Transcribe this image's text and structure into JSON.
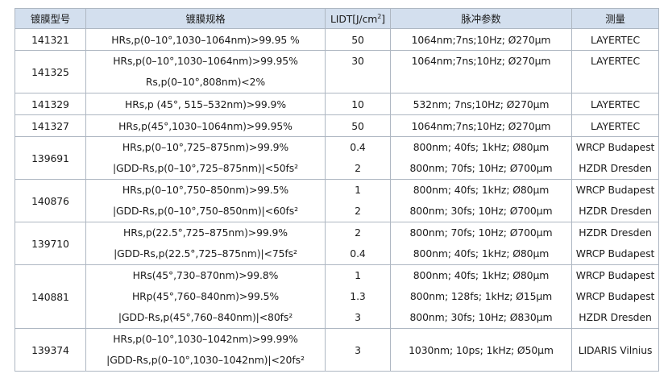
{
  "headers": [
    "镀膜型号",
    "镀膜规格",
    "LIDT[J/cm",
    "2",
    "]",
    "脉冲参数",
    "测量"
  ],
  "rows": [
    {
      "id": "141321",
      "lines": [
        {
          "spec": "HRs,p(0–10°,1030–1064nm)>99.95 %",
          "lidt": "50",
          "pulse": "1064nm;7ns;10Hz; Ø270µm",
          "measure": "LAYERTEC"
        }
      ]
    },
    {
      "id": "141325",
      "lines": [
        {
          "spec": "HRs,p(0–10°,1030–1064nm)>99.95%",
          "lidt": "30",
          "pulse": "1064nm;7ns;10Hz; Ø270µm",
          "measure": "LAYERTEC"
        },
        {
          "spec": "Rs,p(0–10°,808nm)<2%",
          "lidt": "",
          "pulse": "",
          "measure": ""
        }
      ]
    },
    {
      "id": "141329",
      "lines": [
        {
          "spec": "HRs,p (45°, 515–532nm)>99.9%",
          "lidt": "10",
          "pulse": "532nm; 7ns;10Hz; Ø270µm",
          "measure": "LAYERTEC"
        }
      ]
    },
    {
      "id": "141327",
      "lines": [
        {
          "spec": "HRs,p(45°,1030–1064nm)>99.95%",
          "lidt": "50",
          "pulse": "1064nm;7ns;10Hz; Ø270µm",
          "measure": "LAYERTEC"
        }
      ]
    },
    {
      "id": "139691",
      "lines": [
        {
          "spec": "HRs,p(0–10°,725–875nm)>99.9%",
          "lidt": "0.4",
          "pulse": "800nm; 40fs; 1kHz; Ø80µm",
          "measure": "WRCP Budapest"
        },
        {
          "spec": "|GDD-Rs,p(0–10°,725–875nm)|<50fs²",
          "lidt": "2",
          "pulse": "800nm; 70fs; 10Hz; Ø700µm",
          "measure": "HZDR Dresden"
        }
      ]
    },
    {
      "id": "140876",
      "lines": [
        {
          "spec": "HRs,p(0–10°,750–850nm)>99.5%",
          "lidt": "1",
          "pulse": "800nm; 40fs; 1kHz; Ø80µm",
          "measure": "WRCP Budapest"
        },
        {
          "spec": "|GDD-Rs,p(0–10°,750–850nm)|<60fs²",
          "lidt": "2",
          "pulse": "800nm; 30fs; 10Hz; Ø700µm",
          "measure": "HZDR Dresden"
        }
      ]
    },
    {
      "id": "139710",
      "lines": [
        {
          "spec": "HRs,p(22.5°,725–875nm)>99.9%",
          "lidt": "2",
          "pulse": "800nm; 70fs; 10Hz; Ø700µm",
          "measure": "HZDR Dresden"
        },
        {
          "spec": "|GDD-Rs,p(22.5°,725–875nm)|<75fs²",
          "lidt": "0.4",
          "pulse": "800nm; 40fs; 1kHz; Ø80µm",
          "measure": "WRCP Budapest"
        }
      ]
    },
    {
      "id": "140881",
      "lines": [
        {
          "spec": "HRs(45°,730–870nm)>99.8%",
          "lidt": "1",
          "pulse": "800nm; 40fs; 1kHz; Ø80µm",
          "measure": "WRCP Budapest"
        },
        {
          "spec": "HRp(45°,760–840nm)>99.5%",
          "lidt": "1.3",
          "pulse": "800nm; 128fs; 1kHz; Ø15µm",
          "measure": "WRCP Budapest"
        },
        {
          "spec": "|GDD-Rs,p(45°,760–840nm)|<80fs²",
          "lidt": "3",
          "pulse": "800nm; 30fs; 10Hz; Ø830µm",
          "measure": "HZDR Dresden"
        }
      ]
    },
    {
      "id": "139374",
      "lines": [
        {
          "spec": "HRs,p(0–10°,1030–1042nm)>99.99%",
          "lidt": "3",
          "pulse": "1030nm; 10ps; 1kHz; Ø50µm",
          "measure": "LIDARIS Vilnius"
        },
        {
          "spec": "|GDD-Rs,p(0–10°,1030–1042nm)|<20fs²",
          "lidt": "",
          "pulse": "",
          "measure": ""
        }
      ],
      "merged_values": true
    }
  ],
  "colors": {
    "header_bg": "#d3dfee",
    "border": "#aeb7c2",
    "text": "#1a1a1a"
  }
}
